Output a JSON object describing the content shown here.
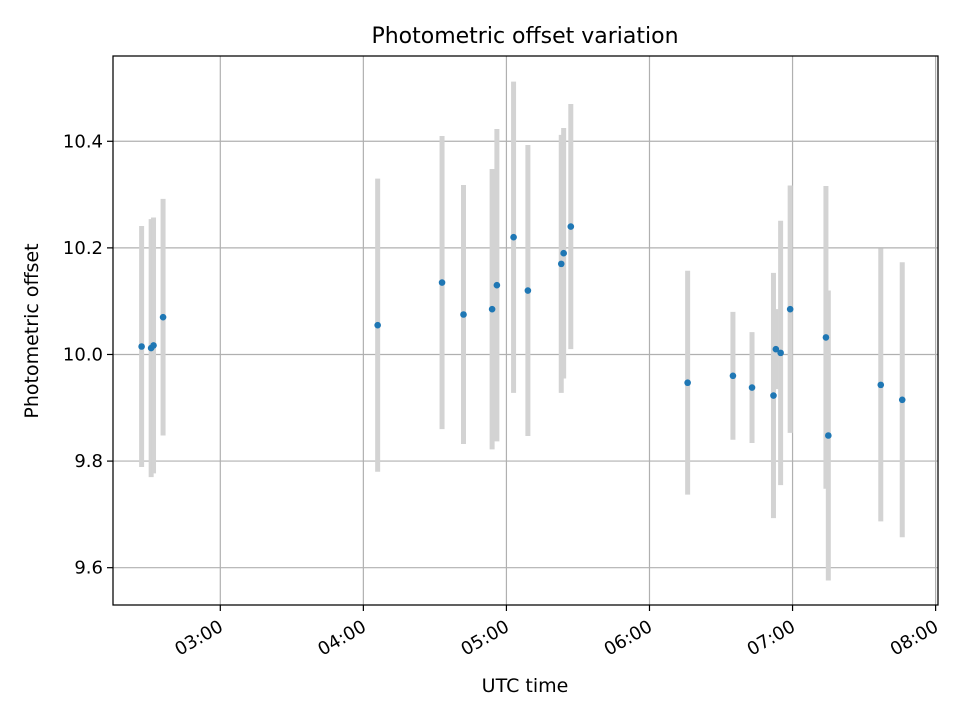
{
  "chart_data": {
    "type": "scatter",
    "title": "Photometric offset variation",
    "xlabel": "UTC time",
    "ylabel": "Photometric offset",
    "x_axis_kind": "time",
    "xlim": [
      "02:15",
      "08:01"
    ],
    "ylim": [
      9.53,
      10.56
    ],
    "x_ticks": [
      "03:00",
      "04:00",
      "05:00",
      "06:00",
      "07:00",
      "08:00"
    ],
    "y_ticks": [
      9.6,
      9.8,
      10.0,
      10.2,
      10.4
    ],
    "grid": true,
    "errorbar_color": "#d3d3d3",
    "marker_color": "#1f77b4",
    "series": [
      {
        "x": [
          "02:27",
          "02:31",
          "02:32",
          "02:36",
          "04:06",
          "04:33",
          "04:42",
          "04:54",
          "04:56",
          "05:03",
          "05:09",
          "05:23",
          "05:24",
          "05:27",
          "06:16",
          "06:35",
          "06:43",
          "06:52",
          "06:53",
          "06:55",
          "06:59",
          "07:14",
          "07:15",
          "07:37",
          "07:46"
        ],
        "y": [
          10.015,
          10.012,
          10.017,
          10.07,
          10.055,
          10.135,
          10.075,
          10.085,
          10.13,
          10.22,
          10.12,
          10.17,
          10.19,
          10.24,
          9.947,
          9.96,
          9.938,
          9.923,
          10.01,
          10.003,
          10.085,
          10.032,
          9.848,
          9.943,
          9.915
        ],
        "y_err": [
          0.226,
          0.242,
          0.24,
          0.222,
          0.275,
          0.275,
          0.243,
          0.263,
          0.293,
          0.292,
          0.273,
          0.242,
          0.235,
          0.23,
          0.21,
          0.12,
          0.104,
          0.23,
          0.075,
          0.248,
          0.232,
          0.284,
          0.272,
          0.256,
          0.258
        ]
      }
    ]
  }
}
